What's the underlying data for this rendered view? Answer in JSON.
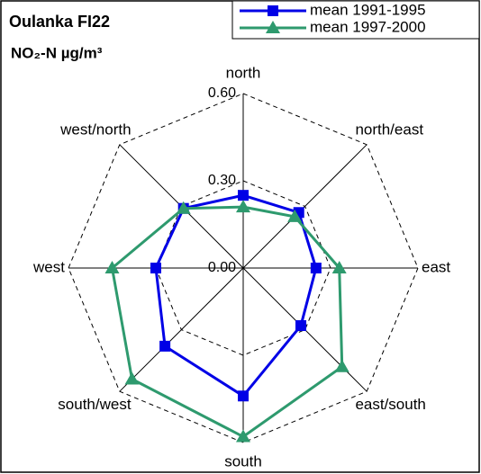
{
  "chart_data": {
    "type": "radar",
    "title": "Oulanka FI22",
    "subtitle": "NO₂-N µg/m³",
    "categories": [
      "north",
      "north/east",
      "east",
      "east/south",
      "south",
      "south/west",
      "west",
      "west/north"
    ],
    "series": [
      {
        "name": "mean 1991-1995",
        "color": "#0000e6",
        "marker": "square",
        "values": [
          0.25,
          0.27,
          0.25,
          0.28,
          0.44,
          0.38,
          0.3,
          0.29
        ]
      },
      {
        "name": "mean 1997-2000",
        "color": "#2e9a6e",
        "marker": "triangle",
        "values": [
          0.21,
          0.25,
          0.33,
          0.48,
          0.58,
          0.54,
          0.45,
          0.29
        ]
      }
    ],
    "ylim": [
      0,
      0.6
    ],
    "yticks": [
      {
        "value": 0,
        "label": "0.00"
      },
      {
        "value": 0.3,
        "label": "0.30"
      },
      {
        "value": 0.6,
        "label": "0.60"
      }
    ],
    "grid": true,
    "legend": "top-right"
  }
}
